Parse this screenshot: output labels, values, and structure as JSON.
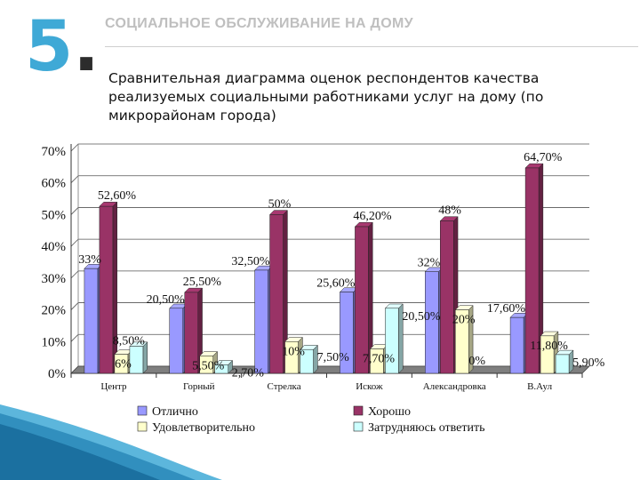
{
  "slide": {
    "number": "5",
    "dot": ".",
    "section_title": "СОЦИАЛЬНОЕ ОБСЛУЖИВАНИЕ НА ДОМУ",
    "subtitle": "Сравнительная диаграмма оценок респондентов качества реализуемых социальными работниками услуг на дому (по микрорайонам города)"
  },
  "colors": {
    "accent": "#3fa9d6",
    "series": [
      "#9999ff",
      "#993366",
      "#ffffcc",
      "#ccffff"
    ]
  },
  "chart_data": {
    "type": "bar",
    "categories": [
      "Центр",
      "Горный",
      "Стрелка",
      "Искож",
      "Александровка",
      "В.Аул"
    ],
    "series": [
      {
        "name": "Отлично",
        "values": [
          33,
          20.5,
          32.5,
          25.6,
          32,
          17.6
        ],
        "labels": [
          "33%",
          "20,50%",
          "32,50%",
          "25,60%",
          "32%",
          "17,60%"
        ]
      },
      {
        "name": "Хорошо",
        "values": [
          52.6,
          25.5,
          50,
          46.2,
          48,
          64.7
        ],
        "labels": [
          "52,60%",
          "25,50%",
          "50%",
          "46,20%",
          "48%",
          "64,70%"
        ]
      },
      {
        "name": "Удовлетворительно",
        "values": [
          6,
          5.5,
          10,
          7.7,
          20,
          11.8
        ],
        "labels": [
          "6%",
          "5,50%",
          "10%",
          "7,70%",
          "20%",
          "11,80%"
        ]
      },
      {
        "name": "Затрудняюсь ответить",
        "values": [
          8.5,
          2.7,
          7.5,
          20.5,
          0,
          5.9
        ],
        "labels": [
          "8,50%",
          "2,70%",
          "7,50%",
          "20,50%",
          "0%",
          "5,90%"
        ]
      }
    ],
    "yticks": [
      "0%",
      "10%",
      "20%",
      "30%",
      "40%",
      "50%",
      "60%",
      "70%"
    ],
    "ylim": [
      0,
      70
    ],
    "grid": true,
    "legend": "bottom"
  }
}
